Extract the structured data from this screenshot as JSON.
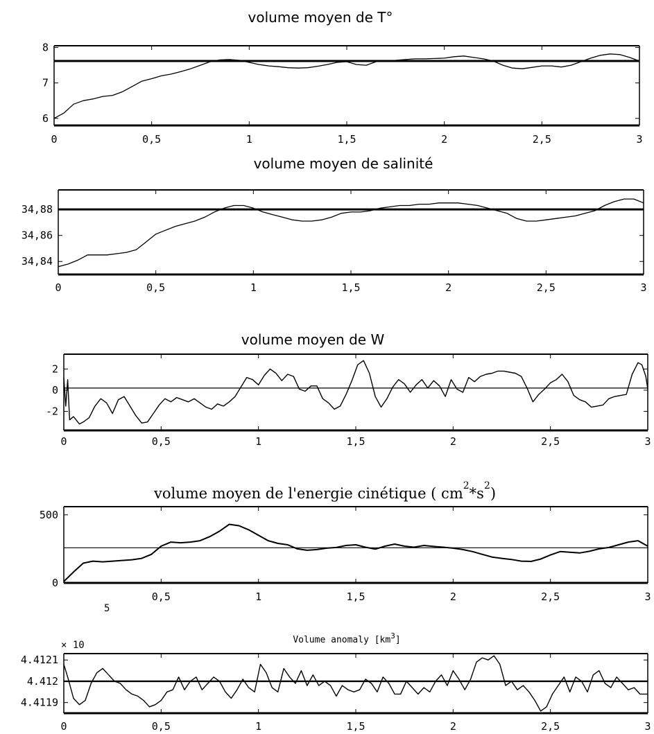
{
  "chart_data": [
    {
      "type": "line",
      "title": "volume moyen de T°",
      "xlabel": "",
      "ylabel": "",
      "xlim": [
        0,
        3
      ],
      "ylim": [
        5.8,
        8.05
      ],
      "xticks": [
        "0",
        "0,5",
        "1",
        "1,5",
        "2",
        "2,5",
        "3"
      ],
      "yticks": [
        "6",
        "7",
        "8"
      ],
      "reference_line": 7.62,
      "series": [
        {
          "x": [
            0,
            0.05,
            0.1,
            0.15,
            0.2,
            0.25,
            0.3,
            0.35,
            0.4,
            0.45,
            0.5,
            0.55,
            0.6,
            0.65,
            0.7,
            0.75,
            0.8,
            0.85,
            0.9,
            0.95,
            1.0,
            1.05,
            1.1,
            1.15,
            1.2,
            1.25,
            1.3,
            1.35,
            1.4,
            1.45,
            1.5,
            1.55,
            1.6,
            1.65,
            1.7,
            1.75,
            1.8,
            1.85,
            1.9,
            1.95,
            2.0,
            2.05,
            2.1,
            2.15,
            2.2,
            2.25,
            2.3,
            2.35,
            2.4,
            2.45,
            2.5,
            2.55,
            2.6,
            2.65,
            2.7,
            2.75,
            2.8,
            2.85,
            2.9,
            2.95,
            3.0
          ],
          "y": [
            6.0,
            6.15,
            6.4,
            6.5,
            6.55,
            6.62,
            6.65,
            6.75,
            6.9,
            7.05,
            7.12,
            7.2,
            7.25,
            7.32,
            7.4,
            7.5,
            7.6,
            7.65,
            7.66,
            7.64,
            7.58,
            7.52,
            7.48,
            7.46,
            7.43,
            7.42,
            7.43,
            7.47,
            7.52,
            7.58,
            7.6,
            7.52,
            7.5,
            7.6,
            7.62,
            7.64,
            7.66,
            7.68,
            7.68,
            7.69,
            7.7,
            7.74,
            7.76,
            7.72,
            7.68,
            7.62,
            7.5,
            7.42,
            7.4,
            7.44,
            7.48,
            7.48,
            7.45,
            7.5,
            7.6,
            7.7,
            7.78,
            7.82,
            7.8,
            7.72,
            7.62
          ]
        }
      ]
    },
    {
      "type": "line",
      "title": "volume moyen de salinité",
      "xlabel": "",
      "ylabel": "",
      "xlim": [
        0,
        3
      ],
      "ylim": [
        34.83,
        34.895
      ],
      "xticks": [
        "0",
        "0,5",
        "1",
        "1,5",
        "2",
        "2,5",
        "3"
      ],
      "yticks": [
        "34,84",
        "34,86",
        "34,88"
      ],
      "reference_line": 34.88,
      "series": [
        {
          "x": [
            0,
            0.05,
            0.1,
            0.15,
            0.2,
            0.25,
            0.3,
            0.35,
            0.4,
            0.45,
            0.5,
            0.55,
            0.6,
            0.65,
            0.7,
            0.75,
            0.8,
            0.85,
            0.9,
            0.95,
            1.0,
            1.05,
            1.1,
            1.15,
            1.2,
            1.25,
            1.3,
            1.35,
            1.4,
            1.45,
            1.5,
            1.55,
            1.6,
            1.65,
            1.7,
            1.75,
            1.8,
            1.85,
            1.9,
            1.95,
            2.0,
            2.05,
            2.1,
            2.15,
            2.2,
            2.25,
            2.3,
            2.35,
            2.4,
            2.45,
            2.5,
            2.55,
            2.6,
            2.65,
            2.7,
            2.75,
            2.8,
            2.85,
            2.9,
            2.95,
            3.0
          ],
          "y": [
            34.836,
            34.838,
            34.841,
            34.845,
            34.845,
            34.845,
            34.846,
            34.847,
            34.849,
            34.855,
            34.861,
            34.864,
            34.867,
            34.869,
            34.871,
            34.874,
            34.878,
            34.881,
            34.883,
            34.883,
            34.881,
            34.878,
            34.876,
            34.874,
            34.872,
            34.871,
            34.871,
            34.872,
            34.874,
            34.877,
            34.878,
            34.878,
            34.879,
            34.881,
            34.882,
            34.883,
            34.883,
            34.884,
            34.884,
            34.885,
            34.885,
            34.885,
            34.884,
            34.883,
            34.881,
            34.879,
            34.877,
            34.873,
            34.871,
            34.871,
            34.872,
            34.873,
            34.874,
            34.875,
            34.877,
            34.879,
            34.883,
            34.886,
            34.888,
            34.888,
            34.885
          ]
        }
      ]
    },
    {
      "type": "line",
      "title": "volume moyen de W",
      "xlabel": "",
      "ylabel": "",
      "xlim": [
        0,
        3
      ],
      "ylim": [
        -3.8,
        3.4
      ],
      "xticks": [
        "0",
        "0,5",
        "1",
        "1,5",
        "2",
        "2,5",
        "3"
      ],
      "yticks": [
        "-2",
        "0",
        "2"
      ],
      "reference_line": 0.2,
      "series": [
        {
          "x": [
            0,
            0.01,
            0.02,
            0.03,
            0.05,
            0.08,
            0.1,
            0.13,
            0.16,
            0.19,
            0.22,
            0.25,
            0.28,
            0.31,
            0.34,
            0.37,
            0.4,
            0.43,
            0.46,
            0.49,
            0.52,
            0.55,
            0.58,
            0.61,
            0.64,
            0.67,
            0.7,
            0.73,
            0.76,
            0.79,
            0.82,
            0.85,
            0.88,
            0.91,
            0.94,
            0.97,
            1.0,
            1.03,
            1.06,
            1.09,
            1.12,
            1.15,
            1.18,
            1.21,
            1.24,
            1.27,
            1.3,
            1.33,
            1.36,
            1.39,
            1.42,
            1.45,
            1.48,
            1.51,
            1.54,
            1.57,
            1.6,
            1.63,
            1.66,
            1.69,
            1.72,
            1.75,
            1.78,
            1.81,
            1.84,
            1.87,
            1.9,
            1.93,
            1.96,
            1.99,
            2.02,
            2.05,
            2.08,
            2.11,
            2.14,
            2.17,
            2.2,
            2.23,
            2.26,
            2.29,
            2.32,
            2.35,
            2.38,
            2.41,
            2.44,
            2.47,
            2.5,
            2.53,
            2.56,
            2.59,
            2.62,
            2.65,
            2.68,
            2.71,
            2.74,
            2.77,
            2.8,
            2.83,
            2.86,
            2.89,
            2.92,
            2.95,
            2.97,
            2.99,
            3.0
          ],
          "y": [
            1.2,
            -1.5,
            1.0,
            -2.8,
            -2.5,
            -3.2,
            -3.0,
            -2.6,
            -1.5,
            -0.8,
            -1.2,
            -2.2,
            -0.9,
            -0.6,
            -1.5,
            -2.4,
            -3.1,
            -3.0,
            -2.2,
            -1.4,
            -0.8,
            -1.1,
            -0.7,
            -0.9,
            -1.1,
            -0.8,
            -1.2,
            -1.6,
            -1.8,
            -1.3,
            -1.5,
            -1.1,
            -0.6,
            0.3,
            1.2,
            1.0,
            0.5,
            1.4,
            2.0,
            1.6,
            0.9,
            1.5,
            1.3,
            0.1,
            -0.1,
            0.4,
            0.4,
            -0.8,
            -1.2,
            -1.8,
            -1.5,
            -0.4,
            0.9,
            2.4,
            2.8,
            1.6,
            -0.6,
            -1.6,
            -0.8,
            0.3,
            1.0,
            0.6,
            -0.2,
            0.5,
            1.0,
            0.2,
            0.9,
            0.4,
            -0.6,
            1.0,
            0.1,
            -0.2,
            1.2,
            0.8,
            1.3,
            1.5,
            1.6,
            1.8,
            1.8,
            1.7,
            1.6,
            1.3,
            0.2,
            -1.1,
            -0.4,
            0.1,
            0.7,
            1.0,
            1.5,
            0.8,
            -0.5,
            -0.9,
            -1.1,
            -1.6,
            -1.5,
            -1.4,
            -0.8,
            -0.6,
            -0.5,
            -0.4,
            1.5,
            2.6,
            2.4,
            1.3,
            0.1
          ]
        }
      ]
    },
    {
      "type": "line",
      "title": "volume moyen de l'energie cinétique   ( cm",
      "title_sup": "2",
      "title_mid": "*s",
      "title_sup2": "2",
      "title_end": ")",
      "xlabel": "",
      "ylabel": "",
      "xlim": [
        0,
        3
      ],
      "ylim": [
        0,
        560
      ],
      "xticks": [
        "0,5",
        "1",
        "1,5",
        "2",
        "2,5",
        "3"
      ],
      "yticks": [
        "0",
        "500"
      ],
      "reference_line": 258,
      "series": [
        {
          "x": [
            0,
            0.05,
            0.1,
            0.15,
            0.2,
            0.25,
            0.3,
            0.35,
            0.4,
            0.45,
            0.5,
            0.55,
            0.6,
            0.65,
            0.7,
            0.75,
            0.8,
            0.85,
            0.9,
            0.95,
            1.0,
            1.05,
            1.1,
            1.15,
            1.2,
            1.25,
            1.3,
            1.35,
            1.4,
            1.45,
            1.5,
            1.55,
            1.6,
            1.65,
            1.7,
            1.75,
            1.8,
            1.85,
            1.9,
            1.95,
            2.0,
            2.05,
            2.1,
            2.15,
            2.2,
            2.25,
            2.3,
            2.35,
            2.4,
            2.45,
            2.5,
            2.55,
            2.6,
            2.65,
            2.7,
            2.75,
            2.8,
            2.85,
            2.9,
            2.95,
            3.0
          ],
          "y": [
            10,
            80,
            145,
            160,
            155,
            160,
            165,
            170,
            180,
            210,
            270,
            300,
            295,
            300,
            310,
            340,
            380,
            430,
            420,
            390,
            350,
            310,
            290,
            280,
            250,
            240,
            245,
            255,
            260,
            275,
            280,
            262,
            248,
            270,
            285,
            270,
            262,
            275,
            268,
            262,
            255,
            245,
            230,
            210,
            190,
            180,
            172,
            160,
            158,
            175,
            205,
            230,
            225,
            220,
            232,
            250,
            260,
            280,
            300,
            310,
            270
          ]
        }
      ]
    },
    {
      "type": "line",
      "title": "Volume anomaly [km",
      "title_sup": "3",
      "title_end": "]",
      "multiplier": "× 10",
      "multiplier_exp": "5",
      "xlabel": "",
      "ylabel": "",
      "xlim": [
        0,
        3
      ],
      "ylim": [
        4.41185,
        4.41213
      ],
      "xticks": [
        "0",
        "0,5",
        "1",
        "1,5",
        "2",
        "2,5",
        "3"
      ],
      "yticks": [
        "4.4119",
        "4.412",
        "4.4121"
      ],
      "reference_line": 4.412,
      "series": [
        {
          "x": [
            0,
            0.02,
            0.05,
            0.08,
            0.11,
            0.14,
            0.17,
            0.2,
            0.23,
            0.26,
            0.29,
            0.32,
            0.35,
            0.38,
            0.41,
            0.44,
            0.47,
            0.5,
            0.53,
            0.56,
            0.59,
            0.62,
            0.65,
            0.68,
            0.71,
            0.74,
            0.77,
            0.8,
            0.83,
            0.86,
            0.89,
            0.92,
            0.95,
            0.98,
            1.01,
            1.04,
            1.07,
            1.1,
            1.13,
            1.16,
            1.19,
            1.22,
            1.25,
            1.28,
            1.31,
            1.34,
            1.37,
            1.4,
            1.43,
            1.46,
            1.49,
            1.52,
            1.55,
            1.58,
            1.61,
            1.64,
            1.67,
            1.7,
            1.73,
            1.76,
            1.79,
            1.82,
            1.85,
            1.88,
            1.91,
            1.94,
            1.97,
            2.0,
            2.03,
            2.06,
            2.09,
            2.12,
            2.15,
            2.18,
            2.21,
            2.24,
            2.27,
            2.3,
            2.33,
            2.36,
            2.39,
            2.42,
            2.45,
            2.48,
            2.51,
            2.54,
            2.57,
            2.6,
            2.63,
            2.66,
            2.69,
            2.72,
            2.75,
            2.78,
            2.81,
            2.84,
            2.87,
            2.9,
            2.93,
            2.96,
            3.0
          ],
          "y": [
            4.41208,
            4.41202,
            4.41192,
            4.41189,
            4.41191,
            4.41199,
            4.41204,
            4.41206,
            4.41203,
            4.412,
            4.41199,
            4.41196,
            4.41194,
            4.41193,
            4.41191,
            4.41188,
            4.41189,
            4.41191,
            4.41195,
            4.41196,
            4.41202,
            4.41196,
            4.412,
            4.41202,
            4.41196,
            4.41199,
            4.41202,
            4.412,
            4.41195,
            4.41192,
            4.41196,
            4.41201,
            4.41197,
            4.41195,
            4.41208,
            4.41204,
            4.41197,
            4.41195,
            4.41206,
            4.41202,
            4.41199,
            4.41205,
            4.41198,
            4.41203,
            4.41198,
            4.412,
            4.41198,
            4.41193,
            4.41198,
            4.41196,
            4.41195,
            4.41196,
            4.41201,
            4.41199,
            4.41195,
            4.41202,
            4.41199,
            4.41194,
            4.41194,
            4.412,
            4.41197,
            4.41194,
            4.41197,
            4.41195,
            4.412,
            4.41203,
            4.41198,
            4.41205,
            4.41201,
            4.41196,
            4.41201,
            4.41209,
            4.41211,
            4.4121,
            4.41212,
            4.41208,
            4.41198,
            4.412,
            4.41196,
            4.41198,
            4.41195,
            4.41191,
            4.41186,
            4.41188,
            4.41194,
            4.41198,
            4.41202,
            4.41195,
            4.41202,
            4.412,
            4.41195,
            4.41203,
            4.41205,
            4.41199,
            4.41197,
            4.41202,
            4.41199,
            4.41196,
            4.41197,
            4.41194,
            4.41194
          ]
        }
      ]
    }
  ]
}
